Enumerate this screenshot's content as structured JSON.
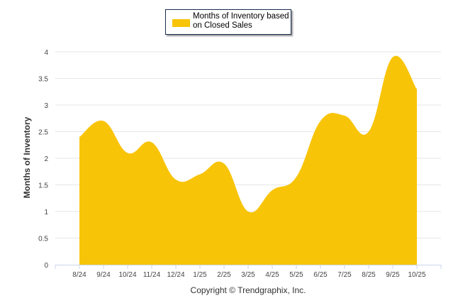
{
  "chart_data": {
    "type": "area",
    "title": "",
    "xlabel": "",
    "ylabel": "Months of Inventory",
    "categories": [
      "8/24",
      "9/24",
      "10/24",
      "11/24",
      "12/24",
      "1/25",
      "2/25",
      "3/25",
      "4/25",
      "5/25",
      "6/25",
      "7/25",
      "8/25",
      "9/25",
      "10/25"
    ],
    "series": [
      {
        "name": "Months of Inventory based on Closed Sales",
        "values": [
          2.4,
          2.7,
          2.1,
          2.3,
          1.6,
          1.7,
          1.9,
          1.0,
          1.4,
          1.65,
          2.7,
          2.8,
          2.5,
          3.9,
          3.3
        ],
        "color": "#F8C408"
      }
    ],
    "ylim": [
      0,
      4
    ],
    "yticks": [
      "0",
      "0.5",
      "1",
      "1.5",
      "2",
      "2.5",
      "3",
      "3.5",
      "4"
    ],
    "grid": true,
    "legend": "top-center",
    "legend_lines": [
      "Months of Inventory based",
      "on Closed Sales"
    ],
    "credit": "Copyright © Trendgraphix, Inc."
  }
}
